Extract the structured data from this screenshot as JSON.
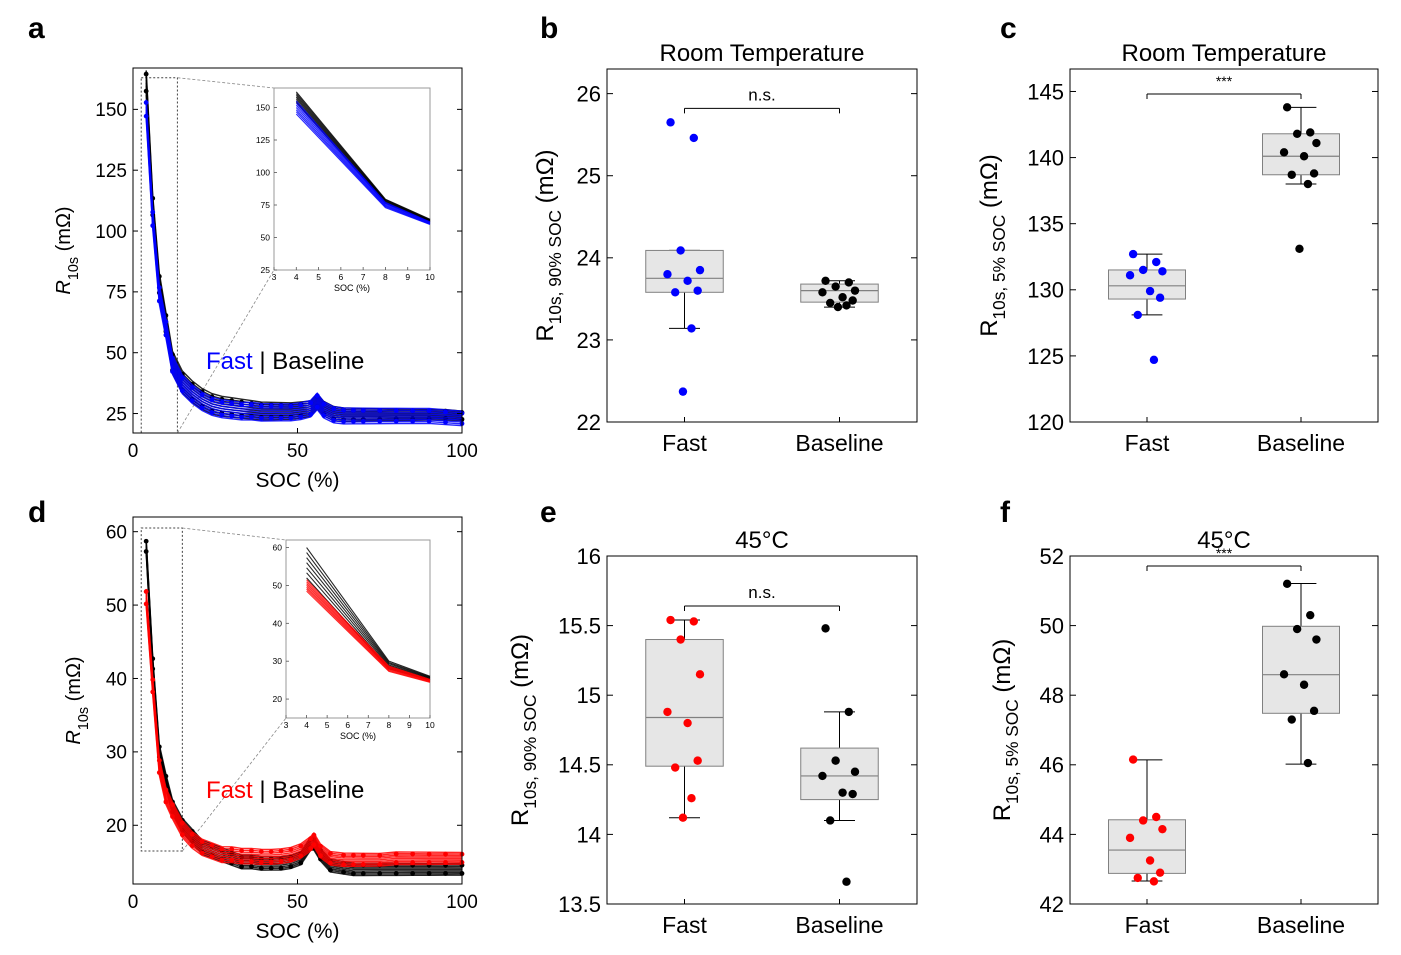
{
  "colors": {
    "fast_rt": "#0000ff",
    "fast_45": "#ff0000",
    "baseline": "#000000",
    "box_fill": "#e6e6e6",
    "box_stroke": "#808080"
  },
  "chart_data": [
    {
      "panel": "a",
      "type": "line",
      "title": "",
      "xlabel": "SOC (%)",
      "ylabel_main": "R",
      "ylabel_sub": "10s",
      "ylabel_tail": " (mΩ)",
      "xlim": [
        0,
        100
      ],
      "ylim": [
        17,
        167
      ],
      "xticks": [
        0,
        50,
        100
      ],
      "yticks": [
        25,
        50,
        75,
        100,
        125,
        150
      ],
      "legend": {
        "fast": "Fast",
        "sep": " | ",
        "baseline": "Baseline"
      },
      "fast_color_key": "fast_rt",
      "x": [
        4,
        6,
        8,
        10,
        12,
        15,
        18,
        21,
        24,
        27,
        30,
        33,
        36,
        39,
        42,
        45,
        48,
        51,
        54,
        56,
        58,
        61,
        64,
        67,
        70,
        75,
        80,
        85,
        90,
        95,
        100
      ],
      "series": [
        {
          "name": "Baseline",
          "color_key": "baseline",
          "band": [
            5,
            2
          ],
          "values": [
            161,
            110,
            78,
            62,
            46,
            38,
            34,
            31,
            29,
            28,
            27.5,
            27,
            26.5,
            26,
            26,
            26,
            26,
            26.5,
            27,
            30,
            27,
            25,
            24.5,
            24.5,
            24.5,
            24.5,
            24.5,
            24.5,
            24.5,
            24.5,
            24
          ]
        },
        {
          "name": "Fast",
          "color_key": "fast_rt",
          "band": [
            4,
            3
          ],
          "values": [
            150,
            105,
            74,
            60,
            45,
            37,
            33,
            30,
            28,
            27,
            26.5,
            26,
            26,
            25.5,
            25.5,
            25.5,
            25.5,
            26,
            27,
            30,
            26.5,
            24.5,
            24,
            24,
            24,
            24,
            24,
            24,
            24,
            23.5,
            23
          ]
        }
      ],
      "zoom_box": {
        "xlim": [
          2.5,
          13.5
        ],
        "ylim": [
          17,
          163
        ]
      },
      "inset": {
        "xlabel": "SOC (%)",
        "xlim": [
          3,
          10
        ],
        "ylim": [
          25,
          165
        ],
        "xticks": [
          3,
          4,
          5,
          6,
          7,
          8,
          9,
          10
        ],
        "yticks": [
          25,
          50,
          75,
          100,
          125,
          150
        ],
        "x": [
          4,
          8,
          10
        ],
        "baseline": {
          "mean": [
            158,
            78,
            63
          ],
          "spread": [
            4,
            1.5,
            1
          ]
        },
        "fast": {
          "mean": [
            150,
            75,
            61
          ],
          "spread": [
            5,
            2,
            1
          ]
        }
      }
    },
    {
      "panel": "b",
      "type": "box",
      "title": "Room Temperature",
      "ylabel_main": "R",
      "ylabel_sub": "10s, 90% SOC",
      "ylabel_tail": " (mΩ)",
      "ylim": [
        22,
        26.3
      ],
      "yticks": [
        22,
        23,
        24,
        25,
        26
      ],
      "categories": [
        "Fast",
        "Baseline"
      ],
      "significance": "n.s.",
      "groups": [
        {
          "name": "Fast",
          "color_key": "fast_rt",
          "box": {
            "whisker_low": 23.14,
            "q1": 23.58,
            "median": 23.75,
            "q3": 24.09,
            "whisker_high": 24.09
          },
          "points": [
            25.65,
            25.46,
            24.09,
            23.85,
            23.8,
            23.72,
            23.6,
            23.58,
            23.14,
            22.37
          ]
        },
        {
          "name": "Baseline",
          "color_key": "baseline",
          "box": {
            "whisker_low": 23.4,
            "q1": 23.46,
            "median": 23.6,
            "q3": 23.68,
            "whisker_high": 23.72
          },
          "points": [
            23.72,
            23.7,
            23.65,
            23.6,
            23.58,
            23.52,
            23.48,
            23.45,
            23.42,
            23.4
          ]
        }
      ]
    },
    {
      "panel": "c",
      "type": "box",
      "title": "Room Temperature",
      "ylabel_main": "R",
      "ylabel_sub": "10s, 5% SOC",
      "ylabel_tail": " (mΩ)",
      "ylim": [
        120,
        146.7
      ],
      "yticks": [
        120,
        125,
        130,
        135,
        140,
        145
      ],
      "categories": [
        "Fast",
        "Baseline"
      ],
      "significance": "***",
      "groups": [
        {
          "name": "Fast",
          "color_key": "fast_rt",
          "box": {
            "whisker_low": 128.1,
            "q1": 129.3,
            "median": 130.3,
            "q3": 131.5,
            "whisker_high": 132.7
          },
          "points": [
            132.7,
            132.1,
            131.5,
            131.4,
            131.1,
            129.9,
            129.4,
            128.1,
            124.7
          ]
        },
        {
          "name": "Baseline",
          "color_key": "baseline",
          "box": {
            "whisker_low": 138,
            "q1": 138.7,
            "median": 140.1,
            "q3": 141.8,
            "whisker_high": 143.8
          },
          "points": [
            143.8,
            141.9,
            141.8,
            141.1,
            140.4,
            140.1,
            138.8,
            138.7,
            138,
            133.1
          ]
        }
      ]
    },
    {
      "panel": "d",
      "type": "line",
      "title": "",
      "xlabel": "SOC (%)",
      "ylabel_main": "R",
      "ylabel_sub": "10s",
      "ylabel_tail": " (mΩ)",
      "xlim": [
        0,
        100
      ],
      "ylim": [
        12,
        62
      ],
      "xticks": [
        0,
        50,
        100
      ],
      "yticks": [
        20,
        30,
        40,
        50,
        60
      ],
      "legend": {
        "fast": "Fast",
        "sep": " | ",
        "baseline": "Baseline"
      },
      "fast_color_key": "fast_45",
      "x": [
        4,
        6,
        8,
        10,
        12,
        15,
        18,
        21,
        24,
        27,
        30,
        33,
        36,
        39,
        42,
        45,
        48,
        51,
        54,
        55,
        57,
        60,
        64,
        67,
        70,
        75,
        80,
        85,
        90,
        95,
        100
      ],
      "series": [
        {
          "name": "Baseline",
          "color_key": "baseline",
          "band": [
            1,
            0.8
          ],
          "values": [
            58,
            42,
            30,
            26,
            22.5,
            20,
            18.5,
            17,
            16.5,
            16,
            15.5,
            15,
            15,
            14.8,
            14.8,
            14.8,
            15,
            15.5,
            17.5,
            17.5,
            16,
            14.5,
            14.2,
            14,
            14,
            14,
            14,
            14,
            14,
            14,
            14
          ]
        },
        {
          "name": "Fast",
          "color_key": "fast_45",
          "band": [
            1.2,
            0.8
          ],
          "values": [
            51,
            39,
            28,
            24,
            22,
            19.5,
            18,
            17,
            16.5,
            16,
            16,
            15.8,
            15.8,
            15.7,
            15.7,
            15.8,
            16,
            16.5,
            17.5,
            18,
            16.5,
            15.5,
            15.3,
            15.3,
            15.3,
            15.3,
            15.5,
            15.5,
            15.5,
            15.5,
            15.5
          ]
        }
      ],
      "zoom_box": {
        "xlim": [
          2.5,
          15
        ],
        "ylim": [
          16.5,
          60.5
        ]
      },
      "inset": {
        "xlabel": "SOC (%)",
        "xlim": [
          3,
          10
        ],
        "ylim": [
          15,
          62
        ],
        "xticks": [
          3,
          4,
          5,
          6,
          7,
          8,
          9,
          10
        ],
        "yticks": [
          20,
          30,
          40,
          50,
          60
        ],
        "x": [
          4,
          8,
          10
        ],
        "baseline": {
          "mean": [
            56,
            29,
            25.5
          ],
          "spread": [
            4,
            1,
            0.5
          ]
        },
        "fast": {
          "mean": [
            50,
            28,
            24.8
          ],
          "spread": [
            1.5,
            0.7,
            0.4
          ]
        }
      }
    },
    {
      "panel": "e",
      "type": "box",
      "title": "45°C",
      "ylabel_main": "R",
      "ylabel_sub": "10s, 90% SOC",
      "ylabel_tail": " (mΩ)",
      "ylim": [
        13.5,
        16
      ],
      "yticks": [
        13.5,
        14,
        14.5,
        15,
        15.5,
        16
      ],
      "categories": [
        "Fast",
        "Baseline"
      ],
      "significance": "n.s.",
      "groups": [
        {
          "name": "Fast",
          "color_key": "fast_45",
          "box": {
            "whisker_low": 14.12,
            "q1": 14.49,
            "median": 14.84,
            "q3": 15.4,
            "whisker_high": 15.54
          },
          "points": [
            15.54,
            15.53,
            15.4,
            15.15,
            14.88,
            14.8,
            14.53,
            14.48,
            14.26,
            14.12
          ]
        },
        {
          "name": "Baseline",
          "color_key": "baseline",
          "box": {
            "whisker_low": 14.1,
            "q1": 14.25,
            "median": 14.42,
            "q3": 14.62,
            "whisker_high": 14.88
          },
          "points": [
            15.48,
            14.88,
            14.53,
            14.45,
            14.42,
            14.3,
            14.29,
            14.1,
            13.66
          ]
        }
      ]
    },
    {
      "panel": "f",
      "type": "box",
      "title": "45°C",
      "ylabel_main": "R",
      "ylabel_sub": "10s, 5% SOC",
      "ylabel_tail": " (mΩ)",
      "ylim": [
        42,
        52
      ],
      "yticks": [
        42,
        44,
        46,
        48,
        50,
        52
      ],
      "categories": [
        "Fast",
        "Baseline"
      ],
      "significance": "***",
      "groups": [
        {
          "name": "Fast",
          "color_key": "fast_45",
          "box": {
            "whisker_low": 42.66,
            "q1": 42.88,
            "median": 43.55,
            "q3": 44.42,
            "whisker_high": 46.14
          },
          "points": [
            46.15,
            44.5,
            44.4,
            44.15,
            43.9,
            43.25,
            42.9,
            42.75,
            42.65
          ]
        },
        {
          "name": "Baseline",
          "color_key": "baseline",
          "box": {
            "whisker_low": 46.02,
            "q1": 47.48,
            "median": 48.59,
            "q3": 49.98,
            "whisker_high": 51.21
          },
          "points": [
            51.2,
            50.3,
            49.9,
            49.6,
            48.6,
            48.3,
            47.55,
            47.3,
            46.05
          ]
        }
      ]
    }
  ]
}
